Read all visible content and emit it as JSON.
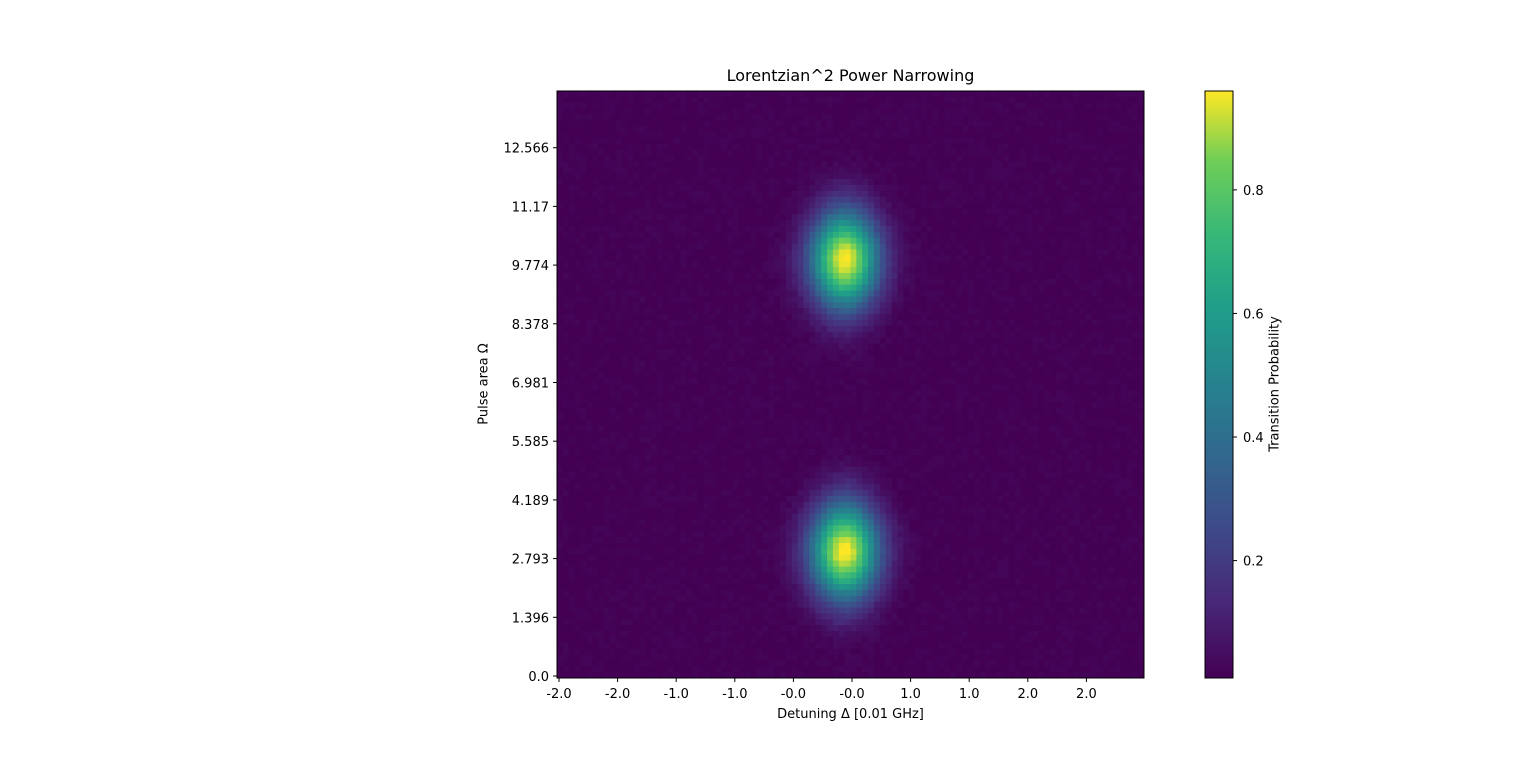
{
  "chart_data": {
    "type": "heatmap",
    "title": "Lorentzian^2 Power Narrowing",
    "xlabel": "Detuning Δ [0.01 GHz]",
    "ylabel": "Pulse area Ω",
    "colorbar_label": "Transition Probability",
    "colormap": "viridis",
    "x_tick_labels": [
      "-2.0",
      "-2.0",
      "-1.0",
      "-1.0",
      "-0.0",
      "-0.0",
      "1.0",
      "1.0",
      "2.0",
      "2.0"
    ],
    "y_tick_labels": [
      "0.0",
      "1.396",
      "2.793",
      "4.189",
      "5.585",
      "6.981",
      "8.378",
      "9.774",
      "11.17",
      "12.566"
    ],
    "colorbar_ticks": [
      "0.2",
      "0.4",
      "0.6",
      "0.8"
    ],
    "colorbar_range": [
      0.01,
      0.96
    ],
    "xlim": [
      -2.5,
      2.5
    ],
    "ylim": [
      0.0,
      13.9
    ],
    "grid": false,
    "peaks": [
      {
        "detuning": -0.05,
        "pulse_area": 3.0,
        "probability": 0.96
      },
      {
        "detuning": -0.05,
        "pulse_area": 9.9,
        "probability": 0.96
      }
    ]
  }
}
